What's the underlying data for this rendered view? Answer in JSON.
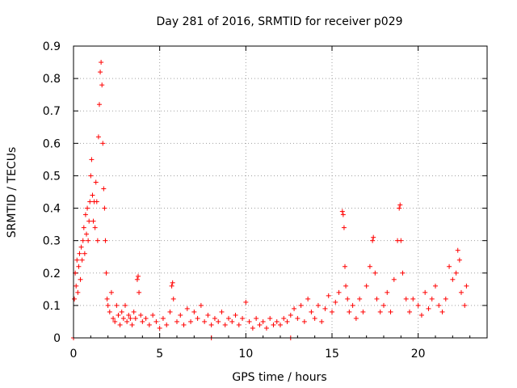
{
  "chart_data": {
    "type": "scatter",
    "title": "Day 281 of 2016, SRMTID for receiver p029",
    "xlabel": "GPS time / hours",
    "ylabel": "SRMTID / TECUs",
    "xlim": [
      0,
      24
    ],
    "ylim": [
      0,
      0.9
    ],
    "x_ticks": [
      0,
      5,
      10,
      15,
      20
    ],
    "x_tick_labels": [
      "0",
      "5",
      "10",
      "15",
      "20"
    ],
    "y_ticks": [
      0,
      0.1,
      0.2,
      0.3,
      0.4,
      0.5,
      0.6,
      0.7,
      0.8,
      0.9
    ],
    "y_tick_labels": [
      "0",
      "0.1",
      "0.2",
      "0.3",
      "0.4",
      "0.5",
      "0.6",
      "0.7",
      "0.8",
      "0.9"
    ],
    "grid": true,
    "marker": "+",
    "color": "#ff0000",
    "series": [
      {
        "name": "SRMTID",
        "points": [
          [
            0.0,
            0.0
          ],
          [
            0.05,
            0.12
          ],
          [
            0.1,
            0.2
          ],
          [
            0.15,
            0.16
          ],
          [
            0.2,
            0.24
          ],
          [
            0.25,
            0.14
          ],
          [
            0.3,
            0.22
          ],
          [
            0.35,
            0.26
          ],
          [
            0.4,
            0.18
          ],
          [
            0.45,
            0.28
          ],
          [
            0.5,
            0.24
          ],
          [
            0.55,
            0.3
          ],
          [
            0.6,
            0.34
          ],
          [
            0.65,
            0.26
          ],
          [
            0.7,
            0.38
          ],
          [
            0.75,
            0.32
          ],
          [
            0.8,
            0.4
          ],
          [
            0.85,
            0.3
          ],
          [
            0.9,
            0.36
          ],
          [
            0.95,
            0.42
          ],
          [
            1.0,
            0.5
          ],
          [
            1.05,
            0.55
          ],
          [
            1.1,
            0.44
          ],
          [
            1.15,
            0.36
          ],
          [
            1.2,
            0.42
          ],
          [
            1.25,
            0.34
          ],
          [
            1.3,
            0.48
          ],
          [
            1.35,
            0.42
          ],
          [
            1.4,
            0.3
          ],
          [
            1.45,
            0.62
          ],
          [
            1.5,
            0.72
          ],
          [
            1.55,
            0.82
          ],
          [
            1.6,
            0.85
          ],
          [
            1.65,
            0.78
          ],
          [
            1.7,
            0.6
          ],
          [
            1.75,
            0.46
          ],
          [
            1.8,
            0.4
          ],
          [
            1.85,
            0.3
          ],
          [
            1.9,
            0.2
          ],
          [
            1.95,
            0.12
          ],
          [
            2.0,
            0.1
          ],
          [
            2.1,
            0.08
          ],
          [
            2.2,
            0.14
          ],
          [
            2.3,
            0.06
          ],
          [
            2.4,
            0.05
          ],
          [
            2.5,
            0.1
          ],
          [
            2.6,
            0.07
          ],
          [
            2.7,
            0.04
          ],
          [
            2.8,
            0.08
          ],
          [
            2.9,
            0.06
          ],
          [
            3.0,
            0.1
          ],
          [
            3.1,
            0.05
          ],
          [
            3.2,
            0.07
          ],
          [
            3.3,
            0.06
          ],
          [
            3.4,
            0.04
          ],
          [
            3.5,
            0.08
          ],
          [
            3.6,
            0.06
          ],
          [
            3.7,
            0.18
          ],
          [
            3.75,
            0.19
          ],
          [
            3.8,
            0.14
          ],
          [
            3.9,
            0.07
          ],
          [
            4.0,
            0.05
          ],
          [
            4.2,
            0.06
          ],
          [
            4.4,
            0.04
          ],
          [
            4.6,
            0.07
          ],
          [
            4.8,
            0.05
          ],
          [
            5.0,
            0.03
          ],
          [
            5.2,
            0.06
          ],
          [
            5.4,
            0.04
          ],
          [
            5.6,
            0.08
          ],
          [
            5.7,
            0.16
          ],
          [
            5.75,
            0.17
          ],
          [
            5.8,
            0.12
          ],
          [
            6.0,
            0.05
          ],
          [
            6.2,
            0.07
          ],
          [
            6.4,
            0.04
          ],
          [
            6.6,
            0.09
          ],
          [
            6.8,
            0.05
          ],
          [
            7.0,
            0.08
          ],
          [
            7.2,
            0.06
          ],
          [
            7.4,
            0.1
          ],
          [
            7.6,
            0.05
          ],
          [
            7.8,
            0.07
          ],
          [
            8.0,
            0.0
          ],
          [
            8.0,
            0.04
          ],
          [
            8.2,
            0.06
          ],
          [
            8.4,
            0.05
          ],
          [
            8.6,
            0.08
          ],
          [
            8.8,
            0.04
          ],
          [
            9.0,
            0.06
          ],
          [
            9.2,
            0.05
          ],
          [
            9.4,
            0.07
          ],
          [
            9.6,
            0.04
          ],
          [
            9.8,
            0.06
          ],
          [
            10.0,
            0.11
          ],
          [
            10.2,
            0.05
          ],
          [
            10.4,
            0.03
          ],
          [
            10.6,
            0.06
          ],
          [
            10.8,
            0.04
          ],
          [
            11.0,
            0.05
          ],
          [
            11.2,
            0.03
          ],
          [
            11.4,
            0.06
          ],
          [
            11.6,
            0.04
          ],
          [
            11.8,
            0.05
          ],
          [
            12.0,
            0.04
          ],
          [
            12.2,
            0.06
          ],
          [
            12.4,
            0.05
          ],
          [
            12.6,
            0.0
          ],
          [
            12.6,
            0.07
          ],
          [
            12.8,
            0.09
          ],
          [
            13.0,
            0.06
          ],
          [
            13.2,
            0.1
          ],
          [
            13.4,
            0.05
          ],
          [
            13.6,
            0.12
          ],
          [
            13.8,
            0.08
          ],
          [
            14.0,
            0.06
          ],
          [
            14.2,
            0.1
          ],
          [
            14.4,
            0.05
          ],
          [
            14.6,
            0.09
          ],
          [
            14.8,
            0.13
          ],
          [
            15.0,
            0.08
          ],
          [
            15.2,
            0.11
          ],
          [
            15.4,
            0.14
          ],
          [
            15.6,
            0.39
          ],
          [
            15.65,
            0.38
          ],
          [
            15.7,
            0.34
          ],
          [
            15.75,
            0.22
          ],
          [
            15.8,
            0.16
          ],
          [
            15.9,
            0.12
          ],
          [
            16.0,
            0.08
          ],
          [
            16.2,
            0.1
          ],
          [
            16.4,
            0.06
          ],
          [
            16.6,
            0.12
          ],
          [
            16.8,
            0.08
          ],
          [
            17.0,
            0.16
          ],
          [
            17.2,
            0.22
          ],
          [
            17.35,
            0.3
          ],
          [
            17.4,
            0.31
          ],
          [
            17.5,
            0.2
          ],
          [
            17.6,
            0.12
          ],
          [
            17.8,
            0.08
          ],
          [
            18.0,
            0.1
          ],
          [
            18.2,
            0.14
          ],
          [
            18.4,
            0.08
          ],
          [
            18.6,
            0.18
          ],
          [
            18.8,
            0.3
          ],
          [
            18.9,
            0.4
          ],
          [
            18.95,
            0.41
          ],
          [
            19.0,
            0.3
          ],
          [
            19.1,
            0.2
          ],
          [
            19.3,
            0.12
          ],
          [
            19.5,
            0.08
          ],
          [
            19.7,
            0.12
          ],
          [
            20.0,
            0.1
          ],
          [
            20.2,
            0.07
          ],
          [
            20.4,
            0.14
          ],
          [
            20.6,
            0.09
          ],
          [
            20.8,
            0.12
          ],
          [
            21.0,
            0.16
          ],
          [
            21.2,
            0.1
          ],
          [
            21.4,
            0.08
          ],
          [
            21.6,
            0.12
          ],
          [
            21.8,
            0.22
          ],
          [
            22.0,
            0.18
          ],
          [
            22.2,
            0.2
          ],
          [
            22.3,
            0.27
          ],
          [
            22.4,
            0.24
          ],
          [
            22.5,
            0.14
          ],
          [
            22.7,
            0.1
          ],
          [
            22.8,
            0.16
          ]
        ]
      }
    ]
  }
}
